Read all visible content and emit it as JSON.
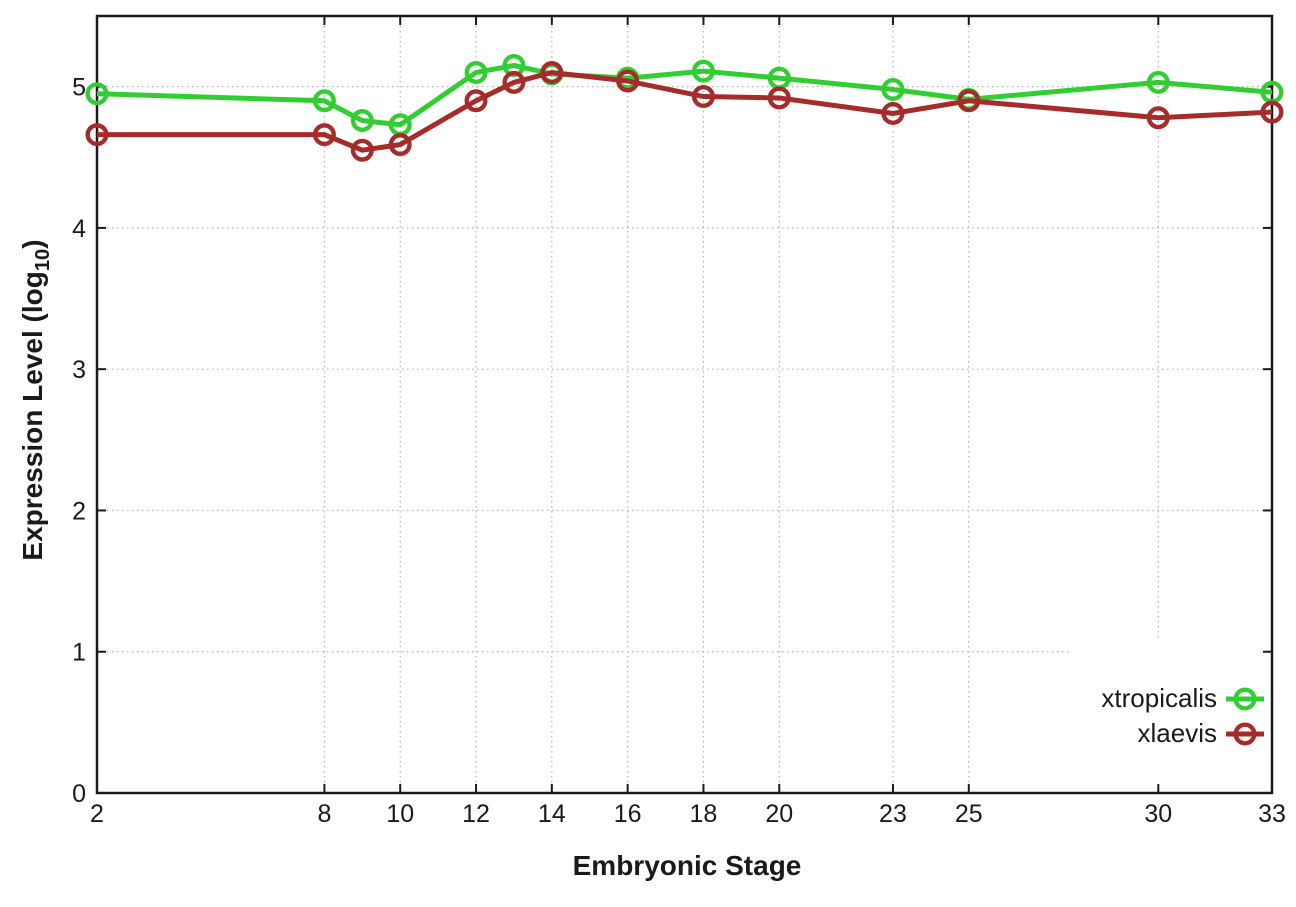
{
  "chart_data": {
    "type": "line",
    "title": "",
    "xlabel": "Embryonic Stage",
    "ylabel": {
      "base": "Expression Level (log",
      "subscript": "10",
      "close": ")"
    },
    "x": [
      2,
      8,
      9,
      10,
      12,
      13,
      14,
      16,
      18,
      20,
      23,
      25,
      30,
      33
    ],
    "series": [
      {
        "name": "xtropicalis",
        "color": "#32cd32",
        "values": [
          4.95,
          4.9,
          4.76,
          4.73,
          5.1,
          5.15,
          5.09,
          5.06,
          5.11,
          5.06,
          4.98,
          4.91,
          5.03,
          4.96
        ]
      },
      {
        "name": "xlaevis",
        "color": "#a62b2b",
        "values": [
          4.66,
          4.66,
          4.55,
          4.59,
          4.9,
          5.03,
          5.1,
          5.04,
          4.93,
          4.92,
          4.81,
          4.9,
          4.78,
          4.82
        ]
      }
    ],
    "xtick_values": [
      2,
      8,
      10,
      12,
      14,
      16,
      18,
      20,
      23,
      25,
      30,
      33
    ],
    "xtick_labels": [
      "2",
      "8",
      "10",
      "12",
      "14",
      "16",
      "18",
      "20",
      "23",
      "25",
      "30",
      "33"
    ],
    "ytick_values": [
      0,
      1,
      2,
      3,
      4,
      5
    ],
    "ytick_labels": [
      "0",
      "1",
      "2",
      "3",
      "4",
      "5"
    ],
    "xlim": [
      2,
      33
    ],
    "ylim": [
      0,
      5.5
    ],
    "grid": "dotted",
    "marker": "open-circle",
    "legend": {
      "position": "inside-bottom-right",
      "opaque_background": true,
      "entries": [
        "xtropicalis",
        "xlaevis"
      ]
    },
    "colors": {
      "background": "#ffffff",
      "border": "#1a1a1a",
      "grid": "#b3b3b3",
      "text": "#1a1a1a"
    }
  }
}
